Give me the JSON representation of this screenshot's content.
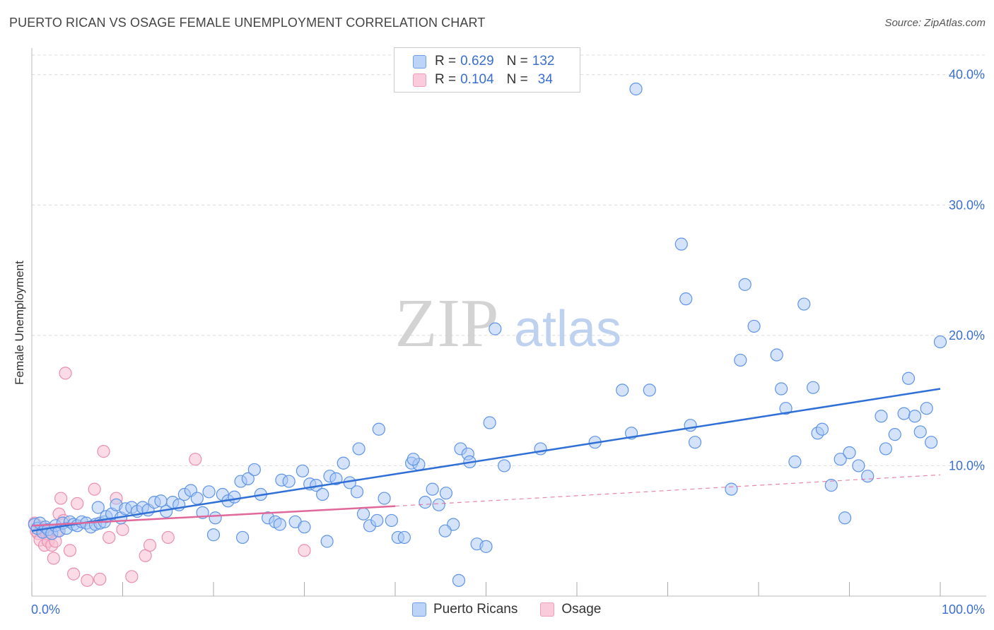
{
  "title": "PUERTO RICAN VS OSAGE FEMALE UNEMPLOYMENT CORRELATION CHART",
  "source": "Source: ZipAtlas.com",
  "watermark": {
    "zip": "ZIP",
    "atlas": "atlas"
  },
  "legend": {
    "rows": [
      {
        "r_label": "R =",
        "r_value": "0.629",
        "n_label": "N =",
        "n_value": "132",
        "color": "#7aa7f0"
      },
      {
        "r_label": "R =",
        "r_value": "0.104",
        "n_label": "N =",
        "n_value": "34",
        "color": "#f29bb8"
      }
    ]
  },
  "colors": {
    "blue_fill": "#a9c7f5",
    "blue_stroke": "#5f94e6",
    "blue_line": "#2f6fd6",
    "pink_fill": "#f7bfd1",
    "pink_stroke": "#e98fb0",
    "pink_line": "#e0689a",
    "grid": "#dcdcdc",
    "tick_text": "#3a6fd0"
  },
  "chart_data": {
    "type": "scatter",
    "title": "PUERTO RICAN VS OSAGE FEMALE UNEMPLOYMENT CORRELATION CHART",
    "xlabel": "",
    "ylabel": "Female Unemployment",
    "xlim": [
      0,
      100
    ],
    "ylim": [
      0,
      41.5
    ],
    "x_tick_labels": {
      "left": "0.0%",
      "right": "100.0%"
    },
    "y_ticks": [
      10,
      20,
      30,
      40
    ],
    "y_tick_labels": [
      "10.0%",
      "20.0%",
      "30.0%",
      "40.0%"
    ],
    "series": [
      {
        "name": "Puerto Ricans",
        "r": 0.629,
        "n": 132,
        "trend": {
          "x": [
            0,
            100
          ],
          "y": [
            5.0,
            15.9
          ]
        },
        "points": [
          [
            0.3,
            5.5
          ],
          [
            0.6,
            5.2
          ],
          [
            0.9,
            5.6
          ],
          [
            1.2,
            4.9
          ],
          [
            1.5,
            5.3
          ],
          [
            1.8,
            5.1
          ],
          [
            2.2,
            4.8
          ],
          [
            2.6,
            5.4
          ],
          [
            3.0,
            5.0
          ],
          [
            3.4,
            5.6
          ],
          [
            3.8,
            5.2
          ],
          [
            4.2,
            5.7
          ],
          [
            4.6,
            5.5
          ],
          [
            5.0,
            5.4
          ],
          [
            5.5,
            5.7
          ],
          [
            6.0,
            5.6
          ],
          [
            6.5,
            5.3
          ],
          [
            7.0,
            5.5
          ],
          [
            7.5,
            5.6
          ],
          [
            8.0,
            5.7
          ],
          [
            7.3,
            6.8
          ],
          [
            8.2,
            6.1
          ],
          [
            8.8,
            6.3
          ],
          [
            9.3,
            7.0
          ],
          [
            9.8,
            6.0
          ],
          [
            10.3,
            6.7
          ],
          [
            11.0,
            6.8
          ],
          [
            11.6,
            6.5
          ],
          [
            12.2,
            6.8
          ],
          [
            12.8,
            6.6
          ],
          [
            13.5,
            7.2
          ],
          [
            14.2,
            7.3
          ],
          [
            14.8,
            6.5
          ],
          [
            15.5,
            7.2
          ],
          [
            16.2,
            7.0
          ],
          [
            16.8,
            7.8
          ],
          [
            17.5,
            8.1
          ],
          [
            18.2,
            7.5
          ],
          [
            18.8,
            6.4
          ],
          [
            19.5,
            8.0
          ],
          [
            20.2,
            6.0
          ],
          [
            21.0,
            7.8
          ],
          [
            21.6,
            7.3
          ],
          [
            22.3,
            7.6
          ],
          [
            23.0,
            8.8
          ],
          [
            23.8,
            9.0
          ],
          [
            24.5,
            9.7
          ],
          [
            25.2,
            7.8
          ],
          [
            26.0,
            6.0
          ],
          [
            26.8,
            5.7
          ],
          [
            27.5,
            8.9
          ],
          [
            28.3,
            8.8
          ],
          [
            29.0,
            5.7
          ],
          [
            29.8,
            9.6
          ],
          [
            30.6,
            8.6
          ],
          [
            31.3,
            8.5
          ],
          [
            32.0,
            7.8
          ],
          [
            32.8,
            9.2
          ],
          [
            33.5,
            9.0
          ],
          [
            34.3,
            10.2
          ],
          [
            35.0,
            8.7
          ],
          [
            35.8,
            8.0
          ],
          [
            36.5,
            6.3
          ],
          [
            37.2,
            5.4
          ],
          [
            38.0,
            5.8
          ],
          [
            38.8,
            7.5
          ],
          [
            39.6,
            5.8
          ],
          [
            40.3,
            4.5
          ],
          [
            41.0,
            4.5
          ],
          [
            41.8,
            10.2
          ],
          [
            42.6,
            10.1
          ],
          [
            43.3,
            7.2
          ],
          [
            44.1,
            8.2
          ],
          [
            44.8,
            7.0
          ],
          [
            45.6,
            7.9
          ],
          [
            46.4,
            5.5
          ],
          [
            47.2,
            11.3
          ],
          [
            48.0,
            10.9
          ],
          [
            49.0,
            4.0
          ],
          [
            50.0,
            3.8
          ],
          [
            20.0,
            4.7
          ],
          [
            23.2,
            4.5
          ],
          [
            27.3,
            5.5
          ],
          [
            30.0,
            5.3
          ],
          [
            32.5,
            4.2
          ],
          [
            36.0,
            11.3
          ],
          [
            38.2,
            12.8
          ],
          [
            42.0,
            10.5
          ],
          [
            45.5,
            5.0
          ],
          [
            47.0,
            1.2
          ],
          [
            48.2,
            10.3
          ],
          [
            50.4,
            13.3
          ],
          [
            51.0,
            20.5
          ],
          [
            52.0,
            10.0
          ],
          [
            56.0,
            11.3
          ],
          [
            62.0,
            11.8
          ],
          [
            65.0,
            15.8
          ],
          [
            66.0,
            12.5
          ],
          [
            68.0,
            15.8
          ],
          [
            72.0,
            22.8
          ],
          [
            71.5,
            27.0
          ],
          [
            66.5,
            38.9
          ],
          [
            72.5,
            13.1
          ],
          [
            73.0,
            11.8
          ],
          [
            77.0,
            8.2
          ],
          [
            78.0,
            18.1
          ],
          [
            78.5,
            23.9
          ],
          [
            79.5,
            20.7
          ],
          [
            82.0,
            18.5
          ],
          [
            82.5,
            15.9
          ],
          [
            83.0,
            14.4
          ],
          [
            84.0,
            10.3
          ],
          [
            85.0,
            22.4
          ],
          [
            86.0,
            16.0
          ],
          [
            86.5,
            12.5
          ],
          [
            87.0,
            12.8
          ],
          [
            88.0,
            8.5
          ],
          [
            89.0,
            10.5
          ],
          [
            89.5,
            6.0
          ],
          [
            90.0,
            11.0
          ],
          [
            91.0,
            10.0
          ],
          [
            92.0,
            9.2
          ],
          [
            93.5,
            13.8
          ],
          [
            94.0,
            11.3
          ],
          [
            95.0,
            12.4
          ],
          [
            96.0,
            14.0
          ],
          [
            96.5,
            16.7
          ],
          [
            97.2,
            13.8
          ],
          [
            97.8,
            12.6
          ],
          [
            98.5,
            14.4
          ],
          [
            99.0,
            11.8
          ],
          [
            100.0,
            19.5
          ]
        ]
      },
      {
        "name": "Osage",
        "r": 0.104,
        "n": 34,
        "trend": {
          "x": [
            0,
            40
          ],
          "y": [
            5.4,
            6.9
          ]
        },
        "trend_dashed": {
          "x": [
            40,
            100
          ],
          "y": [
            6.9,
            9.3
          ]
        },
        "points": [
          [
            0.3,
            5.6
          ],
          [
            0.5,
            5.0
          ],
          [
            0.7,
            4.8
          ],
          [
            0.9,
            4.3
          ],
          [
            1.0,
            5.3
          ],
          [
            1.2,
            5.1
          ],
          [
            1.4,
            3.9
          ],
          [
            1.6,
            4.8
          ],
          [
            1.8,
            4.2
          ],
          [
            2.0,
            4.9
          ],
          [
            2.2,
            3.9
          ],
          [
            2.4,
            2.9
          ],
          [
            2.6,
            4.2
          ],
          [
            2.8,
            5.0
          ],
          [
            3.0,
            6.3
          ],
          [
            3.2,
            7.5
          ],
          [
            3.5,
            5.8
          ],
          [
            3.7,
            17.1
          ],
          [
            4.2,
            3.5
          ],
          [
            4.6,
            1.7
          ],
          [
            5.0,
            7.1
          ],
          [
            6.1,
            1.2
          ],
          [
            6.9,
            8.2
          ],
          [
            7.5,
            1.3
          ],
          [
            7.9,
            11.1
          ],
          [
            8.5,
            4.5
          ],
          [
            9.3,
            7.5
          ],
          [
            10.0,
            5.1
          ],
          [
            11.0,
            1.5
          ],
          [
            12.5,
            3.1
          ],
          [
            13.0,
            3.9
          ],
          [
            15.0,
            4.5
          ],
          [
            18.0,
            10.5
          ],
          [
            30.0,
            3.5
          ]
        ]
      }
    ]
  },
  "bottom_legend": [
    {
      "label": "Puerto Ricans"
    },
    {
      "label": "Osage"
    }
  ]
}
